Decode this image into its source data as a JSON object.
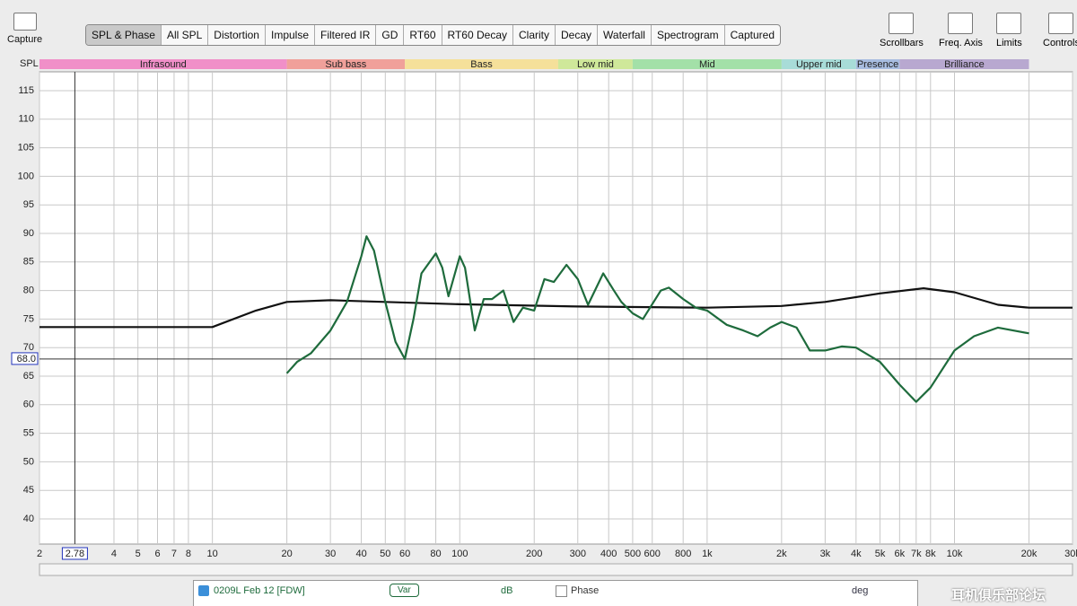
{
  "toolbar": {
    "capture": "Capture",
    "tabs": [
      "SPL & Phase",
      "All SPL",
      "Distortion",
      "Impulse",
      "Filtered IR",
      "GD",
      "RT60",
      "RT60 Decay",
      "Clarity",
      "Decay",
      "Waterfall",
      "Spectrogram",
      "Captured"
    ],
    "tools": [
      "Scrollbars",
      "Freq. Axis",
      "Limits",
      "Controls"
    ]
  },
  "chart_data": {
    "type": "line",
    "y_label": "SPL",
    "x_scale": "log",
    "grid": true,
    "xlim": [
      2,
      30000
    ],
    "ylim": [
      35.6,
      118.3
    ],
    "yticks": [
      40,
      45,
      50,
      55,
      60,
      65,
      70,
      75,
      80,
      85,
      90,
      95,
      100,
      105,
      110,
      115
    ],
    "xticks": [
      2,
      4,
      5,
      6,
      7,
      8,
      10,
      20,
      30,
      40,
      50,
      60,
      80,
      100,
      200,
      300,
      400,
      500,
      600,
      800,
      {
        "value": 1000,
        "label": "1k"
      },
      {
        "value": 2000,
        "label": "2k"
      },
      {
        "value": 3000,
        "label": "3k"
      },
      {
        "value": 4000,
        "label": "4k"
      },
      {
        "value": 5000,
        "label": "5k"
      },
      {
        "value": 6000,
        "label": "6k"
      },
      {
        "value": 7000,
        "label": "7k"
      },
      {
        "value": 8000,
        "label": "8k"
      },
      {
        "value": 10000,
        "label": "10k"
      },
      {
        "value": 20000,
        "label": "20k"
      },
      {
        "value": 30000,
        "label": "30k"
      }
    ],
    "x_cursor": {
      "value": 2.78,
      "label": "2.78"
    },
    "y_cursor": {
      "value": 68,
      "label": "68.0"
    },
    "bands": [
      {
        "name": "Infrasound",
        "range": [
          2,
          20
        ],
        "color": "#f08fc8"
      },
      {
        "name": "Sub bass",
        "range": [
          20,
          60
        ],
        "color": "#f0a09a"
      },
      {
        "name": "Bass",
        "range": [
          60,
          250
        ],
        "color": "#f5e09a"
      },
      {
        "name": "Low mid",
        "range": [
          250,
          500
        ],
        "color": "#cfe89a"
      },
      {
        "name": "Mid",
        "range": [
          500,
          2000
        ],
        "color": "#a3e0a8"
      },
      {
        "name": "Upper mid",
        "range": [
          2000,
          4000
        ],
        "color": "#a8dcd8"
      },
      {
        "name": "Presence",
        "range": [
          4000,
          6000
        ],
        "color": "#a8bde0"
      },
      {
        "name": "Brilliance",
        "range": [
          6000,
          20000
        ],
        "color": "#b8a8d0"
      }
    ],
    "series": [
      {
        "color": "#111111",
        "x": [
          2,
          10,
          15,
          20,
          30,
          100,
          300,
          1000,
          2000,
          3000,
          5000,
          7500,
          10000,
          15000,
          20000,
          30000
        ],
        "values": [
          73.6,
          73.6,
          76.5,
          78,
          78.3,
          77.6,
          77.2,
          77,
          77.3,
          78,
          79.5,
          80.4,
          79.7,
          77.5,
          77,
          77
        ]
      },
      {
        "name": "0209L Feb 12 [FDW]",
        "color": "#1e6b3c",
        "x": [
          20,
          22,
          25,
          30,
          35,
          40,
          42,
          45,
          50,
          55,
          60,
          65,
          70,
          80,
          85,
          90,
          100,
          105,
          115,
          125,
          135,
          150,
          165,
          180,
          200,
          220,
          240,
          270,
          300,
          330,
          380,
          420,
          450,
          500,
          550,
          650,
          700,
          800,
          900,
          1000,
          1200,
          1400,
          1600,
          1800,
          2000,
          2300,
          2600,
          3000,
          3500,
          4000,
          5000,
          6000,
          7000,
          8000,
          10000,
          12000,
          15000,
          20000
        ],
        "values": [
          65.5,
          67.5,
          69,
          73,
          78,
          86,
          89.5,
          87,
          78,
          71,
          68,
          75,
          83,
          86.5,
          84,
          79,
          86,
          84,
          73,
          78.5,
          78.5,
          80,
          74.5,
          77,
          76.5,
          82,
          81.5,
          84.5,
          82,
          77.5,
          83,
          80,
          78,
          76,
          75,
          80,
          80.5,
          78.5,
          77,
          76.5,
          74,
          73,
          72,
          73.5,
          74.5,
          73.5,
          69.5,
          69.5,
          70.2,
          70,
          67.5,
          63.5,
          60.5,
          63,
          69.5,
          72,
          73.5,
          72.5
        ]
      }
    ]
  },
  "legend_panel": {
    "smoothing": "Var",
    "unit": "dB",
    "phase": "Phase",
    "phase_unit": "deg"
  },
  "watermark": "耳机俱乐部论坛"
}
